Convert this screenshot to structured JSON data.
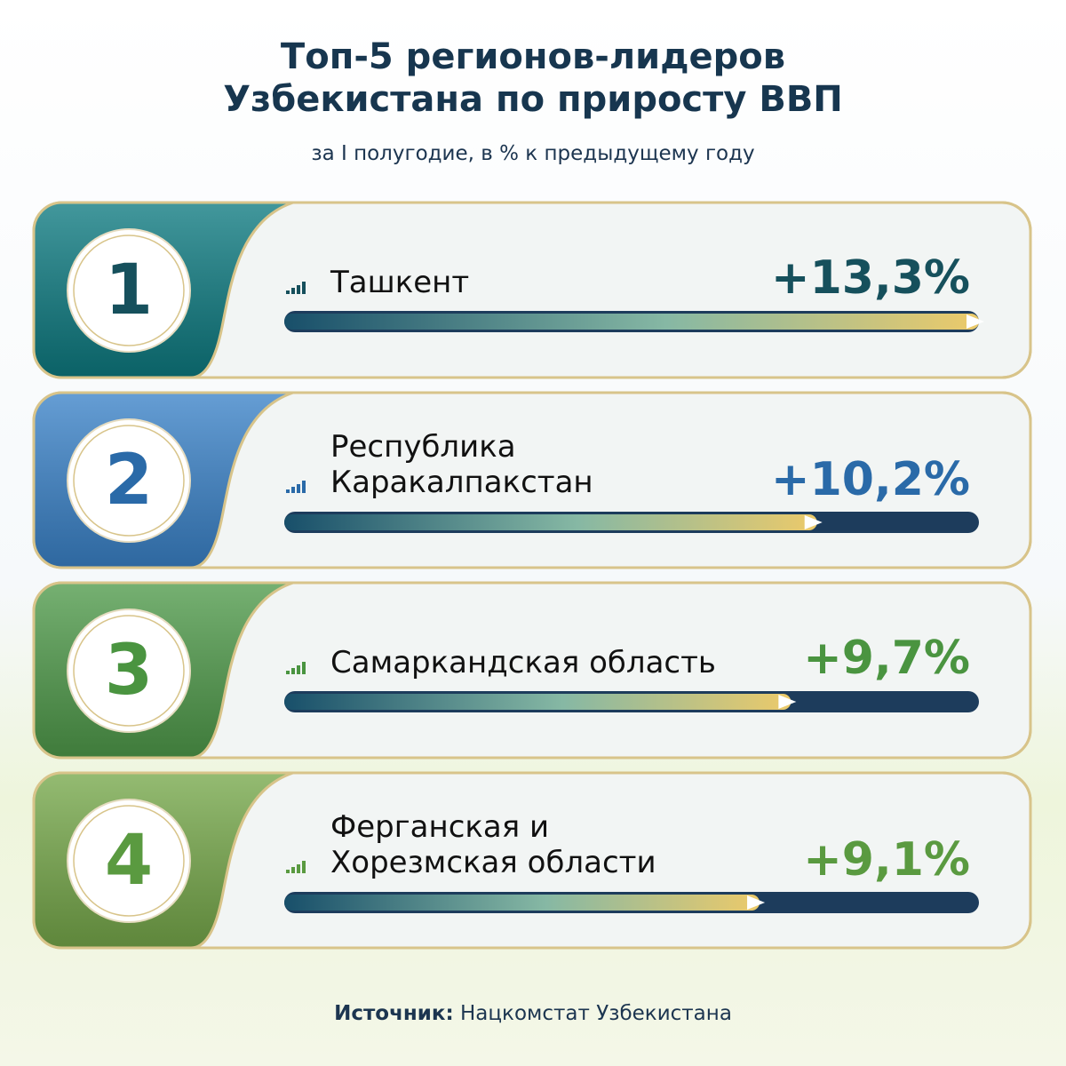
{
  "chart_data": {
    "type": "bar",
    "title": "Топ-5 регионов-лидеров\nУзбекистана по приросту ВВП",
    "subtitle": "за I полугодие, в % к предыдущему году",
    "ranks": [
      1,
      2,
      3,
      4
    ],
    "categories": [
      "Ташкент",
      "Республика\nКаракалпакстан",
      "Самаркандская область",
      "Ферганская и\nХорезмская области"
    ],
    "values": [
      13.3,
      10.2,
      9.7,
      9.1
    ],
    "value_labels": [
      "+13,3%",
      "+10,2%",
      "+9,7%",
      "+9,1%"
    ],
    "xlim": [
      0,
      13.3
    ],
    "colors": [
      "#0d7a80",
      "#3a82c8",
      "#4f9a4a",
      "#76a84a"
    ],
    "label_colors": [
      "#16505c",
      "#2a6aa8",
      "#4a9440",
      "#5a9a40"
    ],
    "source_label": "Источник:",
    "source": "Нацкомстат Узбекистана"
  }
}
